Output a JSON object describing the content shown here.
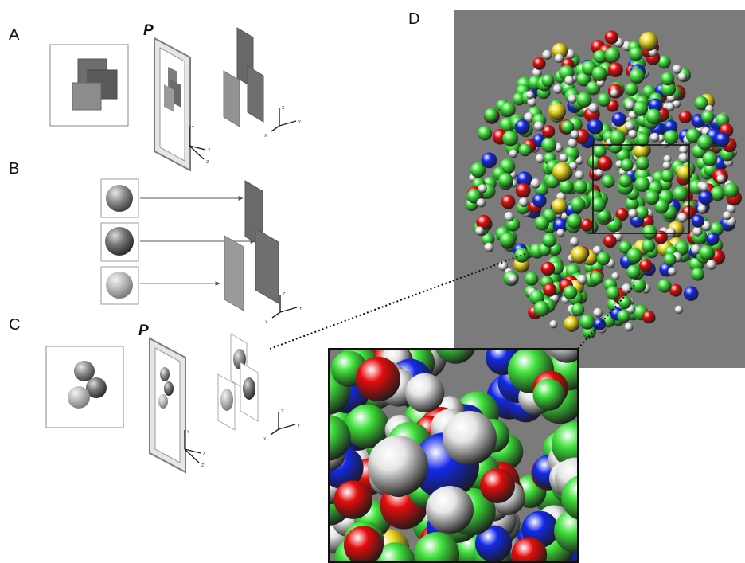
{
  "panels": {
    "a": {
      "label": "A",
      "plane_label": "P"
    },
    "b": {
      "label": "B"
    },
    "c": {
      "label": "C",
      "plane_label": "P"
    },
    "d": {
      "label": "D"
    }
  },
  "axes": {
    "camera": [
      "Y",
      "X",
      "Z"
    ],
    "world": [
      "Z",
      "Y",
      "X"
    ]
  },
  "colors": {
    "carbon": "#3fe23a",
    "oxygen": "#e40c0c",
    "nitrogen": "#1328e8",
    "hydrogen": "#e6e6e6",
    "sulfur": "#ecd820",
    "background": "#7b7b7b"
  }
}
